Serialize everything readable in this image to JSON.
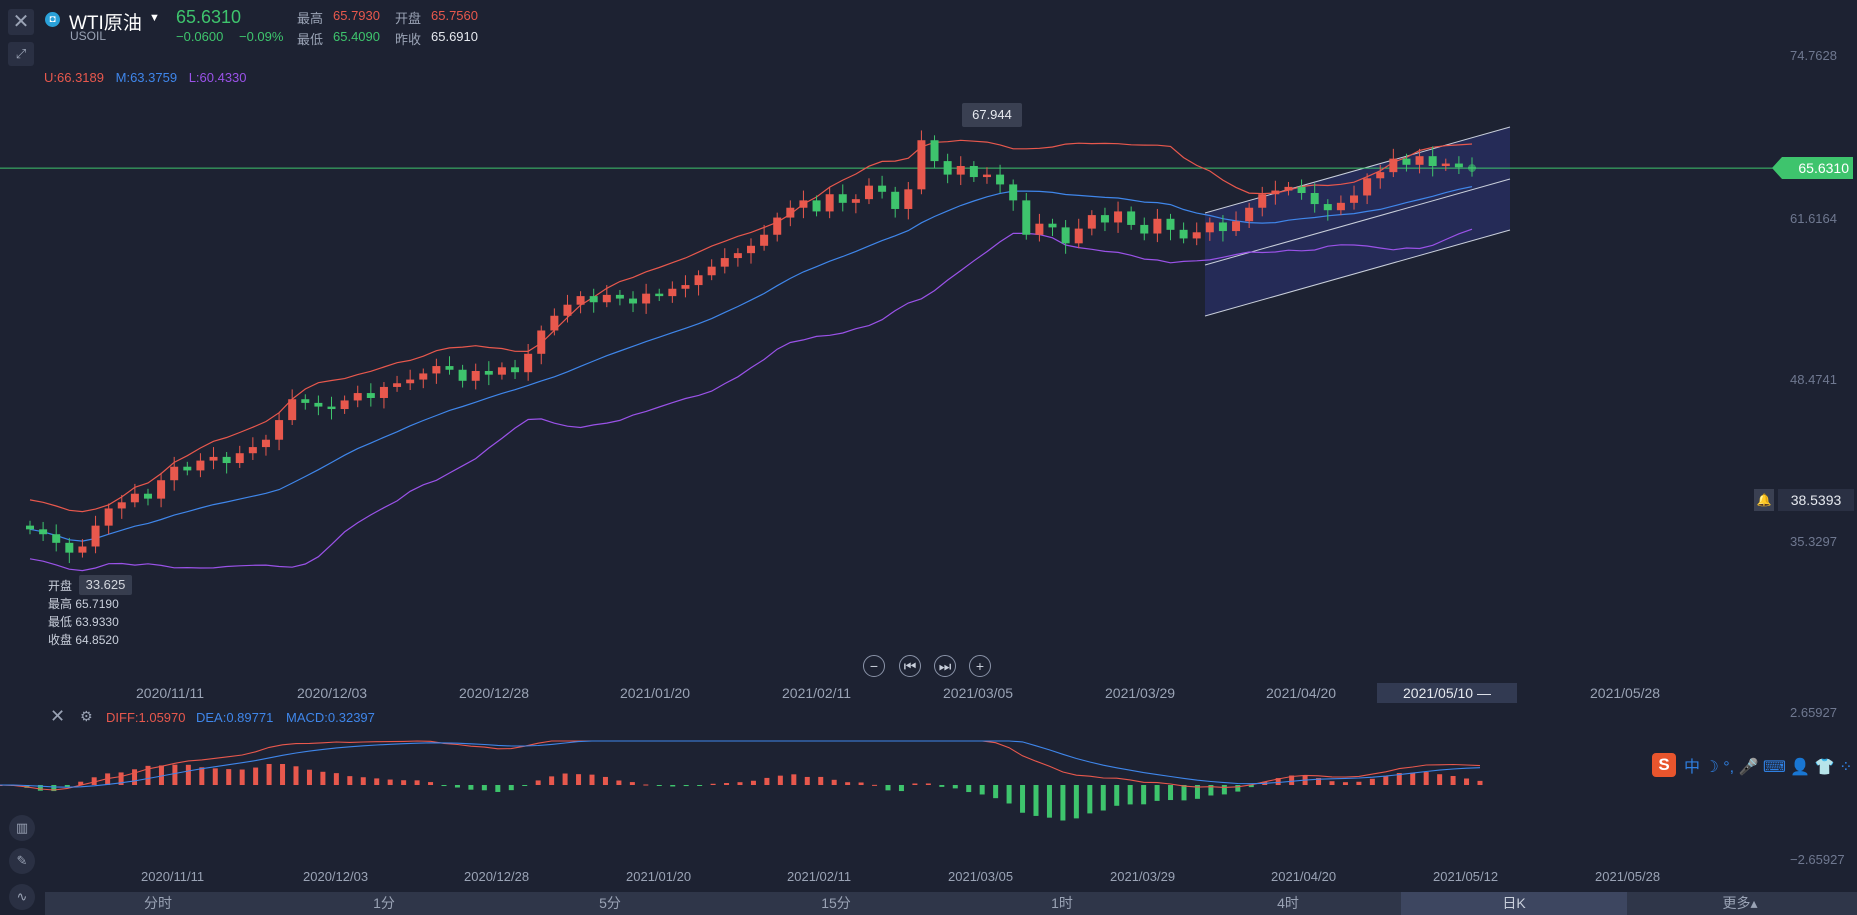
{
  "header": {
    "symbol_name": "WTI原油",
    "symbol_code": "USOIL",
    "price": "65.6310",
    "change": "−0.0600",
    "change_pct": "−0.09%",
    "high_label": "最高",
    "high": "65.7930",
    "open_label": "开盘",
    "open": "65.7560",
    "low_label": "最低",
    "low": "65.4090",
    "prev_close_label": "昨收",
    "prev_close": "65.6910"
  },
  "boll": {
    "upper": "U:66.3189",
    "mid": "M:63.3759",
    "lower": "L:60.4330"
  },
  "price_axis": [
    "74.7628",
    "61.6164",
    "48.4741",
    "35.3297"
  ],
  "current_tag": "65.6310",
  "alert_value": "38.5393",
  "peak_label": "67.944",
  "low_label": "33.625",
  "ohlc_tooltip": [
    {
      "label": "开盘",
      "value": "—"
    },
    {
      "label": "最高",
      "value": "65.7190"
    },
    {
      "label": "最低",
      "value": "63.9330"
    },
    {
      "label": "收盘",
      "value": "64.8520"
    }
  ],
  "main_dates": [
    "2020/11/11",
    "2020/12/03",
    "2020/12/28",
    "2021/01/20",
    "2021/02/11",
    "2021/03/05",
    "2021/03/29",
    "2021/04/20",
    "2021/05/28"
  ],
  "selected_date": "2021/05/10 —",
  "macd": {
    "diff": "DIFF:1.05970",
    "dea": "DEA:0.89771",
    "macd": "MACD:0.32397",
    "axis_top": "2.65927",
    "axis_bottom": "−2.65927"
  },
  "macd_dates": [
    "2020/11/11",
    "2020/12/03",
    "2020/12/28",
    "2021/01/20",
    "2021/02/11",
    "2021/03/05",
    "2021/03/29",
    "2021/04/20",
    "2021/05/12",
    "2021/05/28"
  ],
  "timeframes": [
    "分时",
    "1分",
    "5分",
    "15分",
    "1时",
    "4时",
    "日K",
    "更多▴"
  ],
  "active_timeframe": "日K",
  "ime_text": "中 ☽ °, 🎤 ⌨ 👤 👕 ⁘",
  "colors": {
    "bg": "#1d2232",
    "up": "#e8584d",
    "down": "#3ec46d",
    "mid": "#3f86ea",
    "lower": "#9a52e8"
  },
  "chart_data": {
    "type": "candlestick",
    "symbol": "USOIL",
    "ylim": [
      33,
      75
    ],
    "closes": [
      36.2,
      35.8,
      35.1,
      34.3,
      34.8,
      36.5,
      37.9,
      38.4,
      39.1,
      38.7,
      40.2,
      41.3,
      41.0,
      41.8,
      42.1,
      41.6,
      42.4,
      42.9,
      43.5,
      45.1,
      46.8,
      46.5,
      46.2,
      46.0,
      46.7,
      47.3,
      46.9,
      47.8,
      48.1,
      48.4,
      48.9,
      49.5,
      49.2,
      48.3,
      49.1,
      48.8,
      49.4,
      49.0,
      50.5,
      52.4,
      53.6,
      54.5,
      55.2,
      54.7,
      55.3,
      55.0,
      54.6,
      55.4,
      55.2,
      55.8,
      56.1,
      56.9,
      57.6,
      58.3,
      58.7,
      59.3,
      60.2,
      61.6,
      62.4,
      63.0,
      62.1,
      63.5,
      62.8,
      63.1,
      64.2,
      63.7,
      62.3,
      63.9,
      67.9,
      66.2,
      65.1,
      65.8,
      64.9,
      65.1,
      64.3,
      63.0,
      60.2,
      61.1,
      60.8,
      59.5,
      60.7,
      61.8,
      61.2,
      62.1,
      61.0,
      60.3,
      61.5,
      60.6,
      59.9,
      60.4,
      61.2,
      60.5,
      61.3,
      62.4,
      63.5,
      63.8,
      64.1,
      63.6,
      62.7,
      62.2,
      62.8,
      63.4,
      64.8,
      65.3,
      66.4,
      65.9,
      66.6,
      65.8,
      66.0,
      65.7,
      65.63
    ],
    "boll_upper_last": 66.3189,
    "boll_mid_last": 63.3759,
    "boll_lower_last": 60.433
  }
}
